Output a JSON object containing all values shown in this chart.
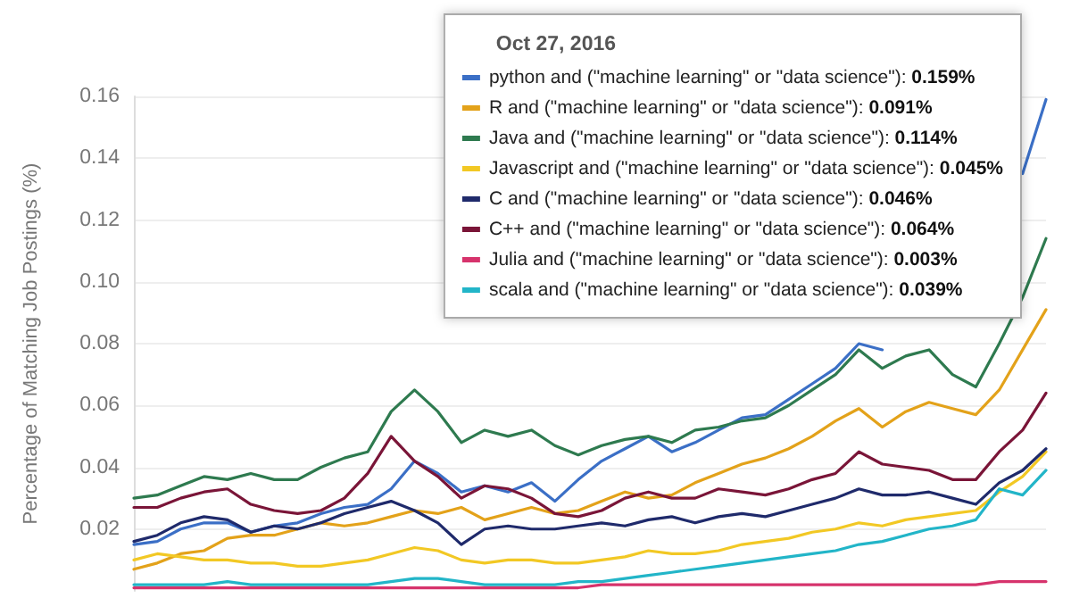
{
  "chart_data": {
    "type": "line",
    "ylabel": "Percentage of Matching Job Postings (%)",
    "legend_title": "Oct 27, 2016",
    "categories": [
      null,
      null,
      null,
      null,
      null,
      null,
      null,
      null,
      null,
      null,
      null,
      null,
      null,
      null,
      null,
      null,
      null,
      null,
      null,
      null,
      null,
      null,
      null,
      null,
      null,
      null,
      null,
      null,
      null,
      null,
      null,
      null,
      null,
      null,
      null,
      null,
      null,
      null,
      null,
      null
    ],
    "ylim": [
      0,
      0.16
    ],
    "yticks": [
      0.02,
      0.04,
      0.06,
      0.08,
      {
        "value": 0.1,
        "label": "0.10"
      },
      0.12,
      0.14,
      0.16
    ],
    "grid": "y",
    "legend": "top right",
    "marker": "none",
    "line_style": "solid",
    "tick_labels": "y",
    "series": [
      {
        "name": "python and (\"machine learning\" or \"data science\"): 0.159%",
        "color": "#3b6fc6",
        "values": [
          0.015,
          0.016,
          0.02,
          0.022,
          0.022,
          0.019,
          0.021,
          0.022,
          0.025,
          0.027,
          0.028,
          0.033,
          0.042,
          0.038,
          0.032,
          0.034,
          0.032,
          0.035,
          0.029,
          0.036,
          0.042,
          0.046,
          0.05,
          0.045,
          0.048,
          0.052,
          0.056,
          0.057,
          0.062,
          0.067,
          0.072,
          0.08,
          0.078,
          null,
          null,
          null,
          null,
          null,
          0.135,
          0.159
        ]
      },
      {
        "name": "R and (\"machine learning\" or \"data science\"): 0.091%",
        "color": "#e3a21a",
        "values": [
          0.007,
          0.009,
          0.012,
          0.013,
          0.017,
          0.018,
          0.018,
          0.02,
          0.022,
          0.021,
          0.022,
          0.024,
          0.026,
          0.025,
          0.027,
          0.023,
          0.025,
          0.027,
          0.025,
          0.026,
          0.029,
          0.032,
          0.03,
          0.031,
          0.035,
          0.038,
          0.041,
          0.043,
          0.046,
          0.05,
          0.055,
          0.059,
          0.053,
          0.058,
          0.061,
          0.059,
          0.057,
          0.065,
          0.078,
          0.091
        ]
      },
      {
        "name": "Java and (\"machine learning\" or \"data science\"): 0.114%",
        "color": "#2e7a4f",
        "values": [
          0.03,
          0.031,
          0.034,
          0.037,
          0.036,
          0.038,
          0.036,
          0.036,
          0.04,
          0.043,
          0.045,
          0.058,
          0.065,
          0.058,
          0.048,
          0.052,
          0.05,
          0.052,
          0.047,
          0.044,
          0.047,
          0.049,
          0.05,
          0.048,
          0.052,
          0.053,
          0.055,
          0.056,
          0.06,
          0.065,
          0.07,
          0.078,
          0.072,
          0.076,
          0.078,
          0.07,
          0.066,
          0.08,
          0.095,
          0.114
        ]
      },
      {
        "name": "Javascript and (\"machine learning\" or \"data science\"): 0.045%",
        "color": "#f2c824",
        "values": [
          0.01,
          0.012,
          0.011,
          0.01,
          0.01,
          0.009,
          0.009,
          0.008,
          0.008,
          0.009,
          0.01,
          0.012,
          0.014,
          0.013,
          0.01,
          0.009,
          0.01,
          0.01,
          0.009,
          0.009,
          0.01,
          0.011,
          0.013,
          0.012,
          0.012,
          0.013,
          0.015,
          0.016,
          0.017,
          0.019,
          0.02,
          0.022,
          0.021,
          0.023,
          0.024,
          0.025,
          0.026,
          0.032,
          0.037,
          0.045
        ]
      },
      {
        "name": "C and (\"machine learning\" or \"data science\"): 0.046%",
        "color": "#1f2a6b",
        "values": [
          0.016,
          0.018,
          0.022,
          0.024,
          0.023,
          0.019,
          0.021,
          0.02,
          0.022,
          0.025,
          0.027,
          0.029,
          0.026,
          0.022,
          0.015,
          0.02,
          0.021,
          0.02,
          0.02,
          0.021,
          0.022,
          0.021,
          0.023,
          0.024,
          0.022,
          0.024,
          0.025,
          0.024,
          0.026,
          0.028,
          0.03,
          0.033,
          0.031,
          0.031,
          0.032,
          0.03,
          0.028,
          0.035,
          0.039,
          0.046
        ]
      },
      {
        "name": "C++ and (\"machine learning\" or \"data science\"): 0.064%",
        "color": "#7a1538",
        "values": [
          0.027,
          0.027,
          0.03,
          0.032,
          0.033,
          0.028,
          0.026,
          0.025,
          0.026,
          0.03,
          0.038,
          0.05,
          0.042,
          0.037,
          0.03,
          0.034,
          0.033,
          0.03,
          0.025,
          0.024,
          0.026,
          0.03,
          0.032,
          0.03,
          0.03,
          0.033,
          0.032,
          0.031,
          0.033,
          0.036,
          0.038,
          0.045,
          0.041,
          0.04,
          0.039,
          0.036,
          0.036,
          0.045,
          0.052,
          0.064
        ]
      },
      {
        "name": "Julia and (\"machine learning\" or \"data science\"): 0.003%",
        "color": "#d6336c",
        "values": [
          0.001,
          0.001,
          0.001,
          0.001,
          0.001,
          0.001,
          0.001,
          0.001,
          0.001,
          0.001,
          0.001,
          0.001,
          0.001,
          0.001,
          0.001,
          0.001,
          0.001,
          0.001,
          0.001,
          0.001,
          0.002,
          0.002,
          0.002,
          0.002,
          0.002,
          0.002,
          0.002,
          0.002,
          0.002,
          0.002,
          0.002,
          0.002,
          0.002,
          0.002,
          0.002,
          0.002,
          0.002,
          0.003,
          0.003,
          0.003
        ]
      },
      {
        "name": "scala and (\"machine learning\" or \"data science\"): 0.039%",
        "color": "#22b5c8",
        "values": [
          0.002,
          0.002,
          0.002,
          0.002,
          0.003,
          0.002,
          0.002,
          0.002,
          0.002,
          0.002,
          0.002,
          0.003,
          0.004,
          0.004,
          0.003,
          0.002,
          0.002,
          0.002,
          0.002,
          0.003,
          0.003,
          0.004,
          0.005,
          0.006,
          0.007,
          0.008,
          0.009,
          0.01,
          0.011,
          0.012,
          0.013,
          0.015,
          0.016,
          0.018,
          0.02,
          0.021,
          0.023,
          0.033,
          0.031,
          0.039
        ]
      }
    ]
  }
}
